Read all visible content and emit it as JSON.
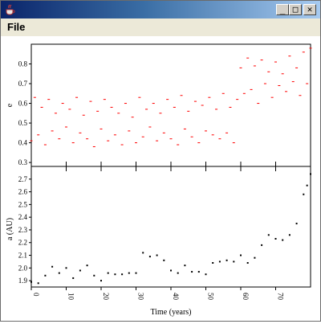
{
  "window": {
    "title": "",
    "minimize_glyph": "_",
    "maximize_glyph": "□",
    "close_glyph": "✕",
    "app_icon": "java-coffee-cup-icon"
  },
  "menu": {
    "file_label": "File"
  },
  "chart_data": [
    {
      "type": "scatter",
      "panel": "top",
      "ylabel": "e",
      "xlabel": "",
      "xlim": [
        0,
        80
      ],
      "ylim": [
        0.28,
        0.9
      ],
      "yticks": [
        0.3,
        0.4,
        0.5,
        0.6,
        0.7,
        0.8
      ],
      "ytick_labels": [
        "0.3",
        "0.4",
        "0.5",
        "0.6",
        "0.7",
        "0.8"
      ],
      "color": "#ff0000",
      "series": [
        {
          "x": [
            0,
            1,
            2,
            3,
            4,
            5,
            6,
            7,
            8,
            9,
            10,
            11,
            12,
            13,
            14,
            15,
            16,
            17,
            18,
            19,
            20,
            21,
            22,
            23,
            24,
            25,
            26,
            27,
            28,
            29,
            30,
            31,
            32,
            33,
            34,
            35,
            36,
            37,
            38,
            39,
            40,
            41,
            42,
            43,
            44,
            45,
            46,
            47,
            48,
            49,
            50,
            51,
            52,
            53,
            54,
            55,
            56,
            57,
            58,
            59,
            60,
            61,
            62,
            63,
            64,
            65,
            66,
            67,
            68,
            69,
            70,
            71,
            72,
            73,
            74,
            75,
            76,
            77,
            78,
            79,
            80
          ],
          "y": [
            0.41,
            0.63,
            0.44,
            0.58,
            0.39,
            0.62,
            0.46,
            0.55,
            0.42,
            0.6,
            0.48,
            0.57,
            0.4,
            0.63,
            0.45,
            0.54,
            0.42,
            0.61,
            0.38,
            0.56,
            0.47,
            0.62,
            0.41,
            0.58,
            0.44,
            0.55,
            0.39,
            0.6,
            0.46,
            0.53,
            0.4,
            0.63,
            0.43,
            0.57,
            0.48,
            0.6,
            0.41,
            0.55,
            0.45,
            0.62,
            0.42,
            0.58,
            0.39,
            0.64,
            0.47,
            0.56,
            0.43,
            0.61,
            0.4,
            0.59,
            0.46,
            0.63,
            0.44,
            0.57,
            0.42,
            0.65,
            0.45,
            0.58,
            0.4,
            0.62,
            0.78,
            0.65,
            0.83,
            0.67,
            0.79,
            0.6,
            0.82,
            0.7,
            0.76,
            0.63,
            0.81,
            0.69,
            0.75,
            0.66,
            0.84,
            0.71,
            0.78,
            0.64,
            0.86,
            0.7,
            0.88
          ]
        }
      ]
    },
    {
      "type": "scatter",
      "panel": "bottom",
      "ylabel": "a (AU)",
      "xlabel": "Time (years)",
      "xlim": [
        0,
        80
      ],
      "ylim": [
        1.85,
        2.8
      ],
      "yticks": [
        1.9,
        2.0,
        2.1,
        2.2,
        2.3,
        2.4,
        2.5,
        2.6,
        2.7
      ],
      "ytick_labels": [
        "1.9",
        "2.0",
        "2.1",
        "2.2",
        "2.3",
        "2.4",
        "2.5",
        "2.6",
        "2.7"
      ],
      "xticks": [
        0,
        10,
        20,
        30,
        40,
        50,
        60,
        70
      ],
      "xtick_labels": [
        "0",
        "10",
        "20",
        "30",
        "40",
        "50",
        "60",
        "70"
      ],
      "color": "#000000",
      "series": [
        {
          "x": [
            0,
            2,
            4,
            6,
            8,
            10,
            12,
            14,
            16,
            18,
            20,
            22,
            24,
            26,
            28,
            30,
            32,
            34,
            36,
            38,
            40,
            42,
            44,
            46,
            48,
            50,
            52,
            54,
            56,
            58,
            60,
            62,
            64,
            66,
            68,
            70,
            72,
            74,
            76,
            78,
            79,
            80
          ],
          "y": [
            1.89,
            1.88,
            1.94,
            2.01,
            1.96,
            2.0,
            1.92,
            1.98,
            2.02,
            1.94,
            1.9,
            1.96,
            1.95,
            1.95,
            1.96,
            1.96,
            2.12,
            2.09,
            2.1,
            2.06,
            1.98,
            1.96,
            2.02,
            1.97,
            1.97,
            1.95,
            2.04,
            2.05,
            2.06,
            2.05,
            2.1,
            2.04,
            2.08,
            2.18,
            2.26,
            2.23,
            2.22,
            2.26,
            2.35,
            2.58,
            2.65,
            2.74
          ]
        }
      ]
    }
  ]
}
